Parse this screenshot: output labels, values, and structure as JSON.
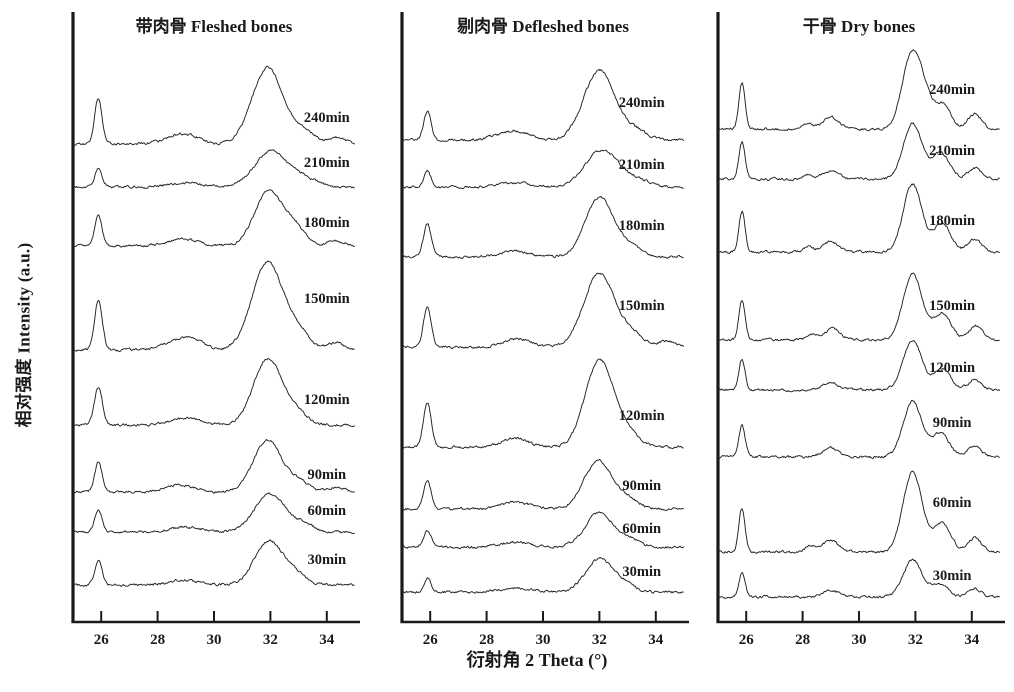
{
  "figure": {
    "background": "#ffffff",
    "curve_color": "#222222",
    "text_color": "#1a1a1a"
  },
  "chart_data": {
    "type": "line",
    "title": "",
    "xlabel": "衍射角 2 Theta  (°)",
    "ylabel": "相对强度 Intensity (a.u.)",
    "x_range": [
      25,
      35
    ],
    "x_ticks": [
      26,
      28,
      30,
      32,
      34
    ],
    "grid": false,
    "legend_position": "labels right of each trace",
    "panels": [
      {
        "title": "带肉骨  Fleshed bones",
        "label_x_frac": 0.9,
        "series": [
          {
            "label": "240min",
            "baseline": 478,
            "label_dy": 27,
            "peaks": [
              [
                25.9,
                0.13,
                46
              ],
              [
                28.6,
                0.45,
                7
              ],
              [
                29.2,
                0.4,
                6
              ],
              [
                31.9,
                0.55,
                76
              ],
              [
                33.2,
                0.4,
                12
              ],
              [
                34.4,
                0.3,
                6
              ]
            ]
          },
          {
            "label": "210min",
            "baseline": 435,
            "label_dy": 25,
            "peaks": [
              [
                25.9,
                0.13,
                18
              ],
              [
                29.0,
                0.6,
                4
              ],
              [
                32.05,
                0.6,
                36
              ],
              [
                33.3,
                0.4,
                7
              ]
            ]
          },
          {
            "label": "180min",
            "baseline": 376,
            "label_dy": 24,
            "peaks": [
              [
                25.9,
                0.13,
                30
              ],
              [
                28.9,
                0.55,
                7
              ],
              [
                31.95,
                0.5,
                56
              ],
              [
                32.9,
                0.35,
                16
              ],
              [
                34.3,
                0.3,
                5
              ]
            ]
          },
          {
            "label": "150min",
            "baseline": 272,
            "label_dy": 52,
            "peaks": [
              [
                25.9,
                0.14,
                50
              ],
              [
                28.7,
                0.5,
                9
              ],
              [
                29.3,
                0.4,
                7
              ],
              [
                31.9,
                0.55,
                88
              ],
              [
                33.0,
                0.4,
                16
              ],
              [
                34.3,
                0.3,
                7
              ]
            ]
          },
          {
            "label": "120min",
            "baseline": 197,
            "label_dy": 26,
            "peaks": [
              [
                25.9,
                0.14,
                38
              ],
              [
                29.0,
                0.55,
                7
              ],
              [
                31.9,
                0.5,
                66
              ],
              [
                32.9,
                0.4,
                12
              ]
            ]
          },
          {
            "label": "90min",
            "baseline": 130,
            "label_dy": 18,
            "peaks": [
              [
                25.9,
                0.13,
                30
              ],
              [
                28.8,
                0.5,
                7
              ],
              [
                31.9,
                0.5,
                52
              ],
              [
                33.0,
                0.35,
                10
              ],
              [
                34.3,
                0.3,
                5
              ]
            ]
          },
          {
            "label": "60min",
            "baseline": 90,
            "label_dy": 22,
            "peaks": [
              [
                25.9,
                0.13,
                22
              ],
              [
                29.0,
                0.55,
                5
              ],
              [
                32.0,
                0.55,
                38
              ],
              [
                33.2,
                0.35,
                7
              ]
            ]
          },
          {
            "label": "30min",
            "baseline": 37,
            "label_dy": 26,
            "peaks": [
              [
                25.9,
                0.13,
                24
              ],
              [
                28.9,
                0.5,
                5
              ],
              [
                31.95,
                0.5,
                44
              ],
              [
                32.9,
                0.35,
                10
              ]
            ]
          }
        ]
      },
      {
        "title": "剔肉骨 Defleshed bones",
        "label_x_frac": 0.85,
        "series": [
          {
            "label": "240min",
            "baseline": 482,
            "label_dy": 38,
            "peaks": [
              [
                25.9,
                0.13,
                29
              ],
              [
                28.7,
                0.5,
                6
              ],
              [
                29.2,
                0.4,
                5
              ],
              [
                32.0,
                0.55,
                70
              ],
              [
                33.3,
                0.4,
                9
              ]
            ]
          },
          {
            "label": "210min",
            "baseline": 435,
            "label_dy": 23,
            "peaks": [
              [
                25.9,
                0.13,
                16
              ],
              [
                29.0,
                0.6,
                4
              ],
              [
                32.1,
                0.6,
                37
              ],
              [
                33.4,
                0.4,
                6
              ]
            ]
          },
          {
            "label": "180min",
            "baseline": 365,
            "label_dy": 32,
            "peaks": [
              [
                25.9,
                0.14,
                33
              ],
              [
                29.0,
                0.5,
                6
              ],
              [
                32.0,
                0.5,
                60
              ],
              [
                33.1,
                0.4,
                10
              ]
            ]
          },
          {
            "label": "150min",
            "baseline": 275,
            "label_dy": 42,
            "peaks": [
              [
                25.9,
                0.14,
                40
              ],
              [
                29.1,
                0.5,
                8
              ],
              [
                32.0,
                0.55,
                74
              ],
              [
                33.2,
                0.4,
                11
              ],
              [
                34.4,
                0.3,
                6
              ]
            ]
          },
          {
            "label": "120min",
            "baseline": 175,
            "label_dy": 32,
            "peaks": [
              [
                25.9,
                0.14,
                44
              ],
              [
                29.0,
                0.45,
                9
              ],
              [
                32.0,
                0.5,
                87
              ],
              [
                33.0,
                0.4,
                13
              ]
            ]
          },
          {
            "label": "90min",
            "baseline": 113,
            "label_dy": 24,
            "peaks": [
              [
                25.9,
                0.13,
                29
              ],
              [
                29.0,
                0.5,
                7
              ],
              [
                31.95,
                0.5,
                48
              ],
              [
                33.0,
                0.4,
                9
              ]
            ]
          },
          {
            "label": "60min",
            "baseline": 75,
            "label_dy": 19,
            "peaks": [
              [
                25.9,
                0.13,
                17
              ],
              [
                29.0,
                0.5,
                5
              ],
              [
                32.0,
                0.5,
                35
              ],
              [
                33.1,
                0.35,
                7
              ]
            ]
          },
          {
            "label": "30min",
            "baseline": 30,
            "label_dy": 21,
            "peaks": [
              [
                25.9,
                0.12,
                14
              ],
              [
                29.0,
                0.5,
                4
              ],
              [
                32.0,
                0.48,
                33
              ],
              [
                32.9,
                0.35,
                7
              ]
            ]
          }
        ]
      },
      {
        "title": "干骨 Dry bones",
        "label_x_frac": 0.83,
        "series": [
          {
            "label": "240min",
            "baseline": 493,
            "label_dy": 40,
            "peaks": [
              [
                25.85,
                0.11,
                46
              ],
              [
                28.2,
                0.15,
                6
              ],
              [
                29.0,
                0.28,
                12
              ],
              [
                31.85,
                0.33,
                72
              ],
              [
                32.35,
                0.28,
                26
              ],
              [
                33.0,
                0.27,
                24
              ],
              [
                34.1,
                0.24,
                15
              ]
            ]
          },
          {
            "label": "210min",
            "baseline": 443,
            "label_dy": 29,
            "peaks": [
              [
                25.85,
                0.11,
                37
              ],
              [
                28.2,
                0.15,
                4
              ],
              [
                29.0,
                0.28,
                8
              ],
              [
                31.9,
                0.33,
                56
              ],
              [
                32.9,
                0.3,
                26
              ],
              [
                34.1,
                0.24,
                11
              ]
            ]
          },
          {
            "label": "180min",
            "baseline": 370,
            "label_dy": 32,
            "peaks": [
              [
                25.85,
                0.11,
                41
              ],
              [
                28.2,
                0.15,
                5
              ],
              [
                29.0,
                0.28,
                10
              ],
              [
                31.9,
                0.33,
                68
              ],
              [
                32.95,
                0.3,
                29
              ],
              [
                34.1,
                0.24,
                13
              ]
            ]
          },
          {
            "label": "150min",
            "baseline": 282,
            "label_dy": 35,
            "peaks": [
              [
                25.85,
                0.11,
                39
              ],
              [
                28.3,
                0.18,
                5
              ],
              [
                29.05,
                0.28,
                11
              ],
              [
                31.9,
                0.34,
                66
              ],
              [
                32.95,
                0.3,
                27
              ],
              [
                34.15,
                0.25,
                14
              ]
            ]
          },
          {
            "label": "120min",
            "baseline": 232,
            "label_dy": 23,
            "peaks": [
              [
                25.85,
                0.11,
                31
              ],
              [
                29.0,
                0.28,
                8
              ],
              [
                31.9,
                0.33,
                50
              ],
              [
                32.95,
                0.3,
                21
              ],
              [
                34.1,
                0.24,
                10
              ]
            ]
          },
          {
            "label": "90min",
            "baseline": 165,
            "label_dy": 35,
            "peaks": [
              [
                25.85,
                0.11,
                32
              ],
              [
                29.0,
                0.28,
                9
              ],
              [
                31.9,
                0.33,
                56
              ],
              [
                32.9,
                0.3,
                24
              ],
              [
                34.1,
                0.24,
                11
              ]
            ]
          },
          {
            "label": "60min",
            "baseline": 70,
            "label_dy": 50,
            "peaks": [
              [
                25.85,
                0.11,
                44
              ],
              [
                28.3,
                0.18,
                6
              ],
              [
                29.0,
                0.28,
                12
              ],
              [
                31.9,
                0.34,
                80
              ],
              [
                32.95,
                0.3,
                29
              ],
              [
                34.1,
                0.25,
                14
              ]
            ]
          },
          {
            "label": "30min",
            "baseline": 25,
            "label_dy": 22,
            "peaks": [
              [
                25.85,
                0.11,
                24
              ],
              [
                29.0,
                0.28,
                7
              ],
              [
                31.9,
                0.33,
                37
              ],
              [
                32.85,
                0.3,
                13
              ],
              [
                34.1,
                0.24,
                8
              ]
            ]
          }
        ]
      }
    ]
  }
}
